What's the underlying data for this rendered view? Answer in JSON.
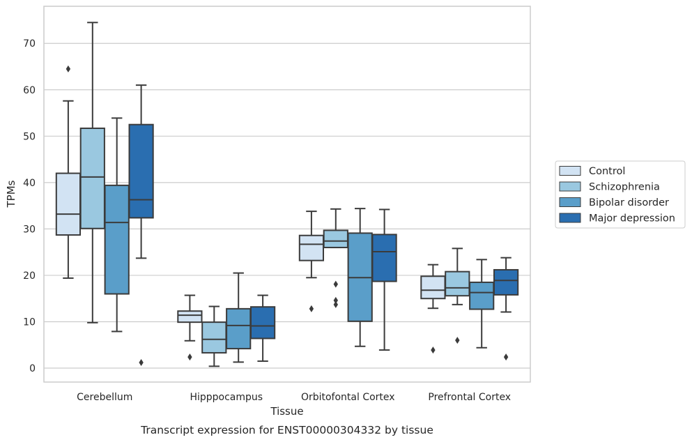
{
  "chart_data": {
    "type": "box",
    "caption": "Transcript expression for ENST00000304332 by tissue",
    "xlabel": "Tissue",
    "ylabel": "TPMs",
    "ylim": [
      -3,
      78
    ],
    "yticks": [
      0,
      10,
      20,
      30,
      40,
      50,
      60,
      70
    ],
    "grid": "horizontal",
    "legend_position": "right",
    "categories": [
      "Cerebellum",
      "Hipppocampus",
      "Orbitofontal Cortex",
      "Prefrontal Cortex"
    ],
    "series": [
      {
        "name": "Control",
        "color": "#d2e3f3",
        "boxes": [
          {
            "whislo": 19.4,
            "q1": 28.7,
            "med": 33.2,
            "q3": 42.0,
            "whishi": 57.6,
            "fliers": [
              64.5
            ]
          },
          {
            "whislo": 5.9,
            "q1": 9.9,
            "med": 11.4,
            "q3": 12.3,
            "whishi": 15.7,
            "fliers": [
              2.4
            ]
          },
          {
            "whislo": 19.5,
            "q1": 23.2,
            "med": 26.7,
            "q3": 28.6,
            "whishi": 33.8,
            "fliers": [
              12.8
            ]
          },
          {
            "whislo": 12.9,
            "q1": 15.0,
            "med": 16.8,
            "q3": 19.8,
            "whishi": 22.3,
            "fliers": [
              3.9
            ]
          }
        ]
      },
      {
        "name": "Schizophrenia",
        "color": "#9ac8e0",
        "boxes": [
          {
            "whislo": 9.8,
            "q1": 30.1,
            "med": 41.2,
            "q3": 51.7,
            "whishi": 74.5,
            "fliers": []
          },
          {
            "whislo": 0.4,
            "q1": 3.3,
            "med": 6.2,
            "q3": 9.9,
            "whishi": 13.3,
            "fliers": []
          },
          {
            "whislo": 26.0,
            "q1": 26.0,
            "med": 27.4,
            "q3": 29.7,
            "whishi": 34.3,
            "fliers": [
              18.1,
              14.6,
              13.7
            ]
          },
          {
            "whislo": 13.7,
            "q1": 15.6,
            "med": 17.3,
            "q3": 20.8,
            "whishi": 25.8,
            "fliers": [
              6.0
            ]
          }
        ]
      },
      {
        "name": "Bipolar disorder",
        "color": "#5a9ec9",
        "boxes": [
          {
            "whislo": 7.9,
            "q1": 16.0,
            "med": 31.4,
            "q3": 39.4,
            "whishi": 53.9,
            "fliers": []
          },
          {
            "whislo": 1.3,
            "q1": 4.2,
            "med": 9.2,
            "q3": 12.8,
            "whishi": 20.5,
            "fliers": []
          },
          {
            "whislo": 4.7,
            "q1": 10.1,
            "med": 19.5,
            "q3": 29.1,
            "whishi": 34.4,
            "fliers": []
          },
          {
            "whislo": 4.4,
            "q1": 12.7,
            "med": 16.3,
            "q3": 18.5,
            "whishi": 23.4,
            "fliers": []
          }
        ]
      },
      {
        "name": "Major depression",
        "color": "#2a6eb0",
        "boxes": [
          {
            "whislo": 23.7,
            "q1": 32.4,
            "med": 36.3,
            "q3": 52.5,
            "whishi": 61.0,
            "fliers": [
              1.2
            ]
          },
          {
            "whislo": 1.5,
            "q1": 6.4,
            "med": 9.1,
            "q3": 13.2,
            "whishi": 15.7,
            "fliers": []
          },
          {
            "whislo": 3.9,
            "q1": 18.7,
            "med": 25.1,
            "q3": 28.8,
            "whishi": 34.2,
            "fliers": []
          },
          {
            "whislo": 12.1,
            "q1": 15.8,
            "med": 18.9,
            "q3": 21.2,
            "whishi": 23.8,
            "fliers": [
              2.4
            ]
          }
        ]
      }
    ]
  }
}
